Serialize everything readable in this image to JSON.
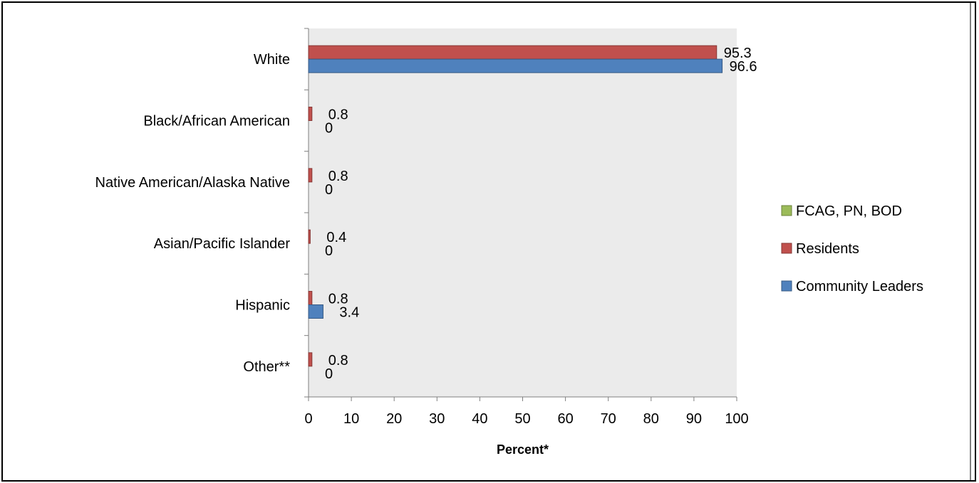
{
  "chart_data": {
    "type": "bar",
    "orientation": "horizontal",
    "categories": [
      "White",
      "Black/African American",
      "Native American/Alaska Native",
      "Asian/Pacific Islander",
      "Hispanic",
      "Other**"
    ],
    "series": [
      {
        "name": "FCAG, PN, BOD",
        "color": "#9bbb59",
        "values": [
          null,
          null,
          null,
          null,
          null,
          null
        ],
        "labels": [
          "",
          "",
          "",
          "",
          "",
          ""
        ]
      },
      {
        "name": "Residents",
        "color": "#c0504d",
        "values": [
          95.3,
          0.8,
          0.8,
          0.4,
          0.8,
          0.8
        ],
        "labels": [
          "95.3",
          "0.8",
          "0.8",
          "0.4",
          "0.8",
          "0.8"
        ]
      },
      {
        "name": "Community Leaders",
        "color": "#4f81bd",
        "values": [
          96.6,
          0,
          0,
          0,
          3.4,
          0
        ],
        "labels": [
          "96.6",
          "0",
          "0",
          "0",
          "3.4",
          "0"
        ]
      }
    ],
    "xlabel": "Percent*",
    "ylabel": "",
    "title": "",
    "xlim": [
      0,
      100
    ],
    "xticks": [
      "0",
      "10",
      "20",
      "30",
      "40",
      "50",
      "60",
      "70",
      "80",
      "90",
      "100"
    ],
    "grid": false,
    "plot_background": "#ebebeb",
    "legend_position": "right"
  }
}
